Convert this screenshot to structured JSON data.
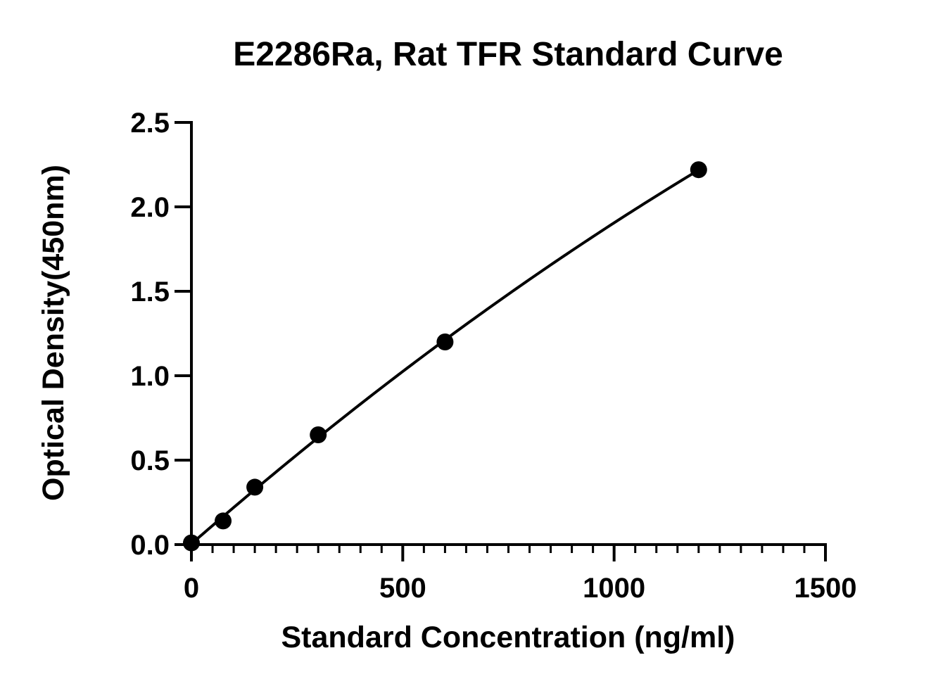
{
  "chart_data": {
    "type": "scatter",
    "title": "E2286Ra, Rat TFR Standard Curve",
    "xlabel": "Standard Concentration (ng/ml)",
    "ylabel": "Optical Density(450nm)",
    "xlim": [
      0,
      1500
    ],
    "ylim": [
      0,
      2.5
    ],
    "x_ticks": [
      0,
      500,
      1000,
      1500
    ],
    "y_ticks": [
      0,
      0.5,
      1.0,
      1.5,
      2.0,
      2.5
    ],
    "x_tick_labels": [
      "0",
      "500",
      "1000",
      "1500"
    ],
    "y_tick_labels": [
      "0.0",
      "0.5",
      "1.0",
      "1.5",
      "2.0",
      "2.5"
    ],
    "x_minor_tick_step": 50,
    "grid": false,
    "fit_curve": true,
    "marker_color": "#000000",
    "line_color": "#000000",
    "series": [
      {
        "x": [
          0,
          75,
          150,
          300,
          600,
          1200
        ],
        "y": [
          0.01,
          0.14,
          0.34,
          0.65,
          1.2,
          2.22
        ]
      }
    ]
  }
}
